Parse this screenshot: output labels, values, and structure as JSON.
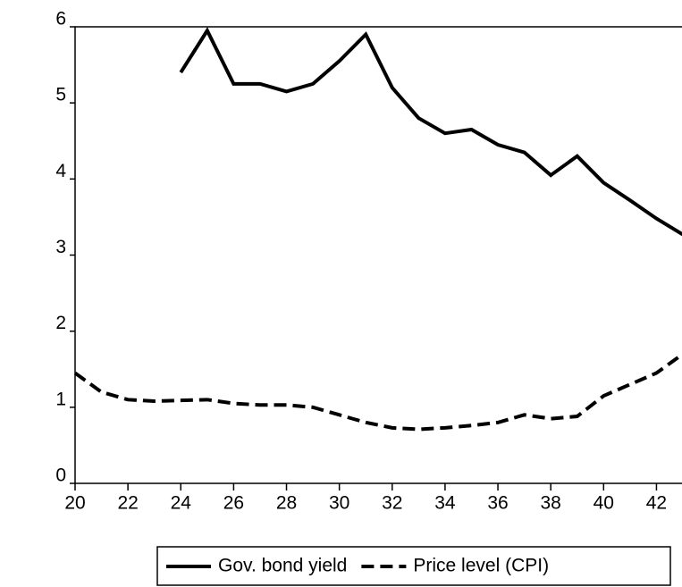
{
  "chart_data": {
    "type": "line",
    "x": [
      20,
      21,
      22,
      23,
      24,
      25,
      26,
      27,
      28,
      29,
      30,
      31,
      32,
      33,
      34,
      35,
      36,
      37,
      38,
      39,
      40,
      41,
      42,
      43
    ],
    "series": [
      {
        "name": "Gov. bond yield",
        "color": "#000000",
        "dash": "solid",
        "values": [
          null,
          null,
          null,
          null,
          5.4,
          5.95,
          5.25,
          5.25,
          5.15,
          5.25,
          5.55,
          5.9,
          5.2,
          4.8,
          4.6,
          4.65,
          4.45,
          4.35,
          4.05,
          4.3,
          3.95,
          3.72,
          3.48,
          3.27
        ]
      },
      {
        "name": "Price level (CPI)",
        "color": "#000000",
        "dash": "dashed",
        "values": [
          1.45,
          1.2,
          1.1,
          1.08,
          1.09,
          1.1,
          1.05,
          1.03,
          1.03,
          1.0,
          0.9,
          0.8,
          0.73,
          0.71,
          0.73,
          0.76,
          0.8,
          0.9,
          0.85,
          0.88,
          1.15,
          1.3,
          1.45,
          1.7
        ]
      }
    ],
    "xlim": [
      20,
      43
    ],
    "xticks": [
      20,
      22,
      24,
      26,
      28,
      30,
      32,
      34,
      36,
      38,
      40,
      42
    ],
    "ylim": [
      0,
      6
    ],
    "yticks": [
      0,
      1,
      2,
      3,
      4,
      5,
      6
    ],
    "legend": "bottom"
  }
}
